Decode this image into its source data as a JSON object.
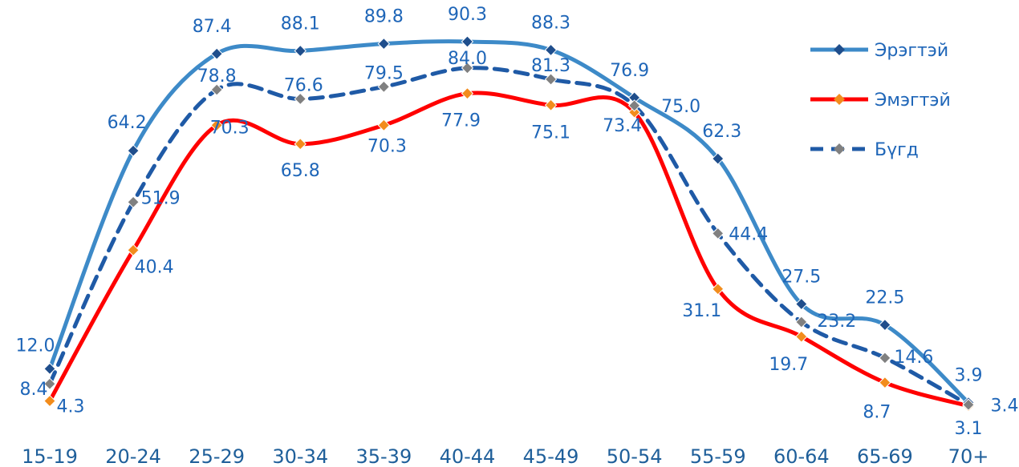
{
  "chart_data": {
    "type": "line",
    "title": "",
    "xlabel": "",
    "ylabel": "",
    "categories": [
      "15-19",
      "20-24",
      "25-29",
      "30-34",
      "35-39",
      "40-44",
      "45-49",
      "50-54",
      "55-59",
      "60-64",
      "65-69",
      "70+"
    ],
    "ylim": [
      0,
      95
    ],
    "grid": false,
    "legend_position": "top-right",
    "series": [
      {
        "name": "Эрэгтэй",
        "color": "#3d8ac8",
        "marker": "#1f4e8c",
        "dash": false,
        "smooth": true,
        "values": [
          12.0,
          64.2,
          87.4,
          88.1,
          89.8,
          90.3,
          88.3,
          76.9,
          62.3,
          27.5,
          22.5,
          3.9
        ]
      },
      {
        "name": "Эмэгтэй",
        "color": "#ff0000",
        "marker": "#f28c1c",
        "dash": false,
        "smooth": true,
        "values": [
          4.3,
          40.4,
          70.3,
          65.8,
          70.3,
          77.9,
          75.1,
          73.4,
          31.1,
          19.7,
          8.7,
          3.1
        ]
      },
      {
        "name": "Бүгд",
        "color": "#1f5aa6",
        "marker": "#808080",
        "dash": true,
        "smooth": true,
        "values": [
          8.4,
          51.9,
          78.8,
          76.6,
          79.5,
          84.0,
          81.3,
          75.0,
          44.4,
          23.2,
          14.6,
          3.4
        ]
      }
    ]
  }
}
